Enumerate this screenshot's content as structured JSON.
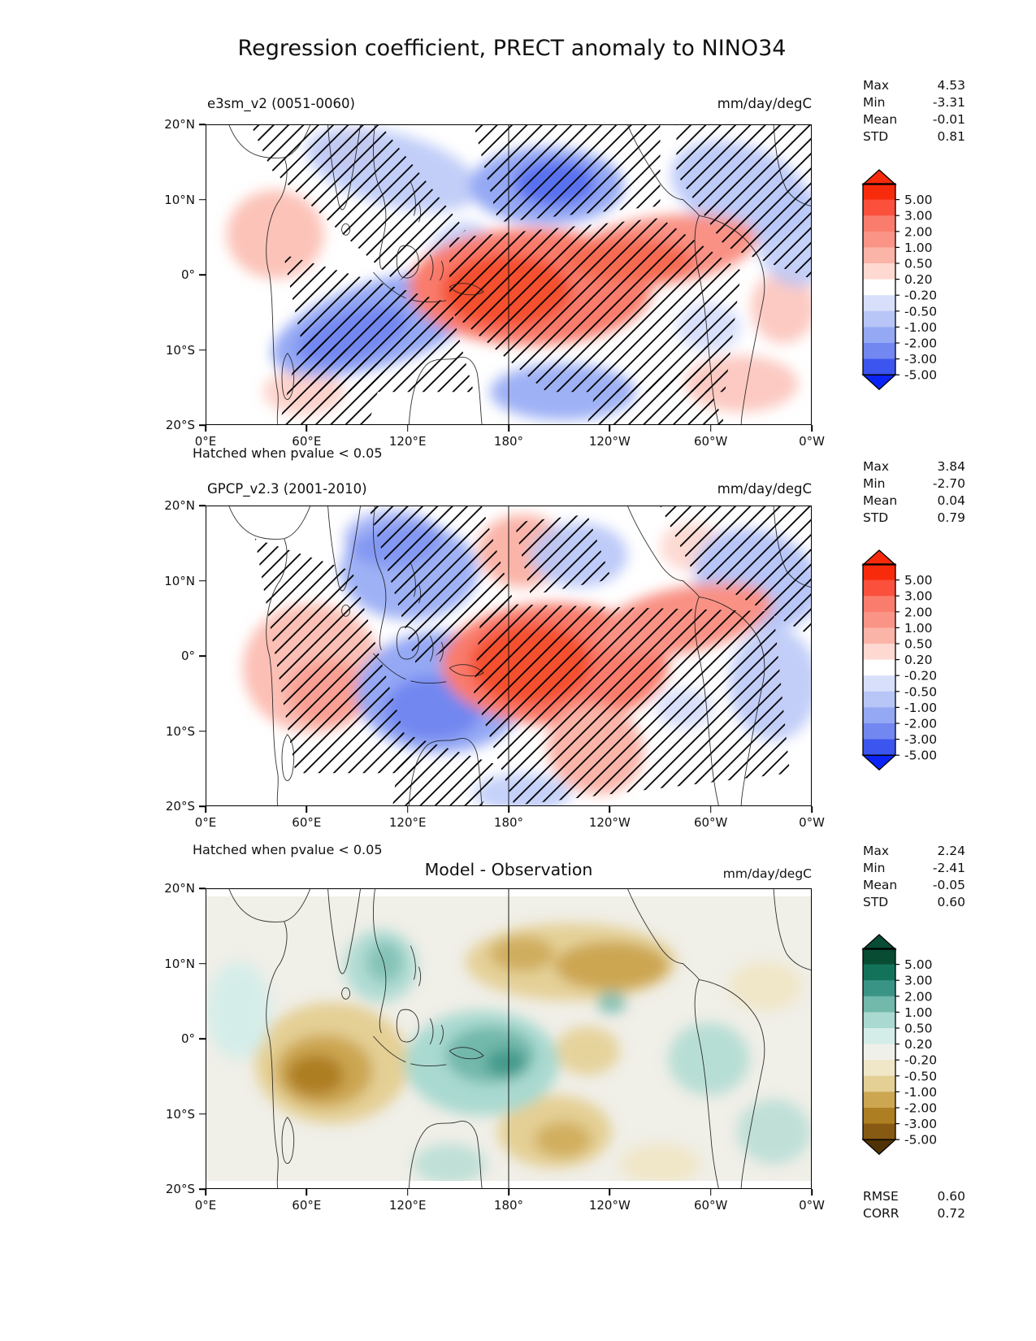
{
  "title": "Regression coefficient, PRECT anomaly to NINO34",
  "hatch_note": "Hatched when pvalue < 0.05",
  "stat_labels": {
    "max": "Max",
    "min": "Min",
    "mean": "Mean",
    "std": "STD",
    "rmse": "RMSE",
    "corr": "CORR"
  },
  "panels": [
    {
      "name": "e3sm_v2 (0051-0060)",
      "units": "mm/day/degC",
      "stats": {
        "max": "4.53",
        "min": "-3.31",
        "mean": "-0.01",
        "std": "0.81"
      }
    },
    {
      "name": "GPCP_v2.3 (2001-2010)",
      "units": "mm/day/degC",
      "stats": {
        "max": "3.84",
        "min": "-2.70",
        "mean": "0.04",
        "std": "0.79"
      }
    },
    {
      "name": "Model - Observation",
      "units": "mm/day/degC",
      "stats": {
        "max": "2.24",
        "min": "-2.41",
        "mean": "-0.05",
        "std": "0.60"
      },
      "rmse": "0.60",
      "corr": "0.72"
    }
  ],
  "axes": {
    "x_ticks": [
      "0°E",
      "60°E",
      "120°E",
      "180°",
      "120°W",
      "60°W",
      "0°W"
    ],
    "y_ticks": [
      "20°N",
      "10°N",
      "0°",
      "10°S",
      "20°S"
    ]
  },
  "colorbars": {
    "labels": [
      "5.00",
      "3.00",
      "2.00",
      "1.00",
      "0.50",
      "0.20",
      "-0.20",
      "-0.50",
      "-1.00",
      "-2.00",
      "-3.00",
      "-5.00"
    ],
    "rdbu": [
      "#f72a0c",
      "#fa503c",
      "#f97c6c",
      "#fa9486",
      "#fbb4a8",
      "#fdd9d2",
      "#ffffff",
      "#d8dffb",
      "#b7c5f7",
      "#94a8f4",
      "#7287f0",
      "#3c55ee",
      "#0b24f5"
    ],
    "brbg": [
      "#084c34",
      "#13735a",
      "#3a9486",
      "#72b8ab",
      "#a9d9d0",
      "#d5ede9",
      "#f0f0ea",
      "#f0e6c8",
      "#e4cf94",
      "#cca651",
      "#ae7e22",
      "#875a13",
      "#503305"
    ]
  },
  "chart_data": {
    "type": "heatmap",
    "title": "Regression coefficient, PRECT anomaly to NINO34",
    "projection": "lon-lat map, tropics",
    "lon_range_deg_east": [
      0,
      360
    ],
    "lat_range_deg": [
      -20,
      20
    ],
    "x_ticks": [
      "0°E",
      "60°E",
      "120°E",
      "180°",
      "120°W",
      "60°W",
      "0°W"
    ],
    "y_ticks": [
      "20°N",
      "10°N",
      "0°",
      "10°S",
      "20°S"
    ],
    "units": "mm/day/degC",
    "contour_levels": [
      -5,
      -3,
      -2,
      -1,
      -0.5,
      -0.2,
      0.2,
      0.5,
      1,
      2,
      3,
      5
    ],
    "significance_note": "Hatched when pvalue < 0.05",
    "panels": [
      {
        "title": "e3sm_v2 (0051-0060)",
        "colormap": "blue-white-red",
        "hatched": true,
        "stats": {
          "max": 4.53,
          "min": -3.31,
          "mean": -0.01,
          "std": 0.81
        },
        "features": [
          "strong positive (red) regression tongue along the equator in the central/west-central Pacific near 150E-140W, values 1-3+",
          "negative (blue) band north of the red tongue around 5-15N near the dateline, values -1 to -3",
          "negative (blue) band across the central/south Indian Ocean (50E-100E)",
          "weak positive patches over east Africa / west Indian Ocean and far-eastern Pacific; weak negatives over Atlantic and far-east Pacific 10N"
        ]
      },
      {
        "title": "GPCP_v2.3 (2001-2010)",
        "colormap": "blue-white-red",
        "hatched": true,
        "stats": {
          "max": 3.84,
          "min": -2.7,
          "mean": 0.04,
          "std": 0.79
        },
        "features": [
          "positive (red) band tilted NE across the central Pacific near the dateline, extending southeast toward 120W",
          "negative (blue) region over the Maritime Continent and eastern Indian Ocean",
          "positive (pink) region over western Indian Ocean/Africa",
          "negative (blue) patches in the Atlantic and far-east Pacific"
        ]
      },
      {
        "title": "Model - Observation",
        "colormap": "brown-white-green (BrBG)",
        "hatched": false,
        "stats": {
          "max": 2.24,
          "min": -2.41,
          "mean": -0.05,
          "std": 0.6
        },
        "rmse": 0.6,
        "corr": 0.72,
        "features": [
          "negative (brown) bias blob in the west/central Indian Ocean near 50-80E",
          "positive (teal) bias over the Maritime Continent 100-150E",
          "negative (brown) band in the north Pacific 5-15N around the dateline",
          "mixed tan/teal patches across the eastern Pacific and Atlantic"
        ]
      }
    ]
  }
}
